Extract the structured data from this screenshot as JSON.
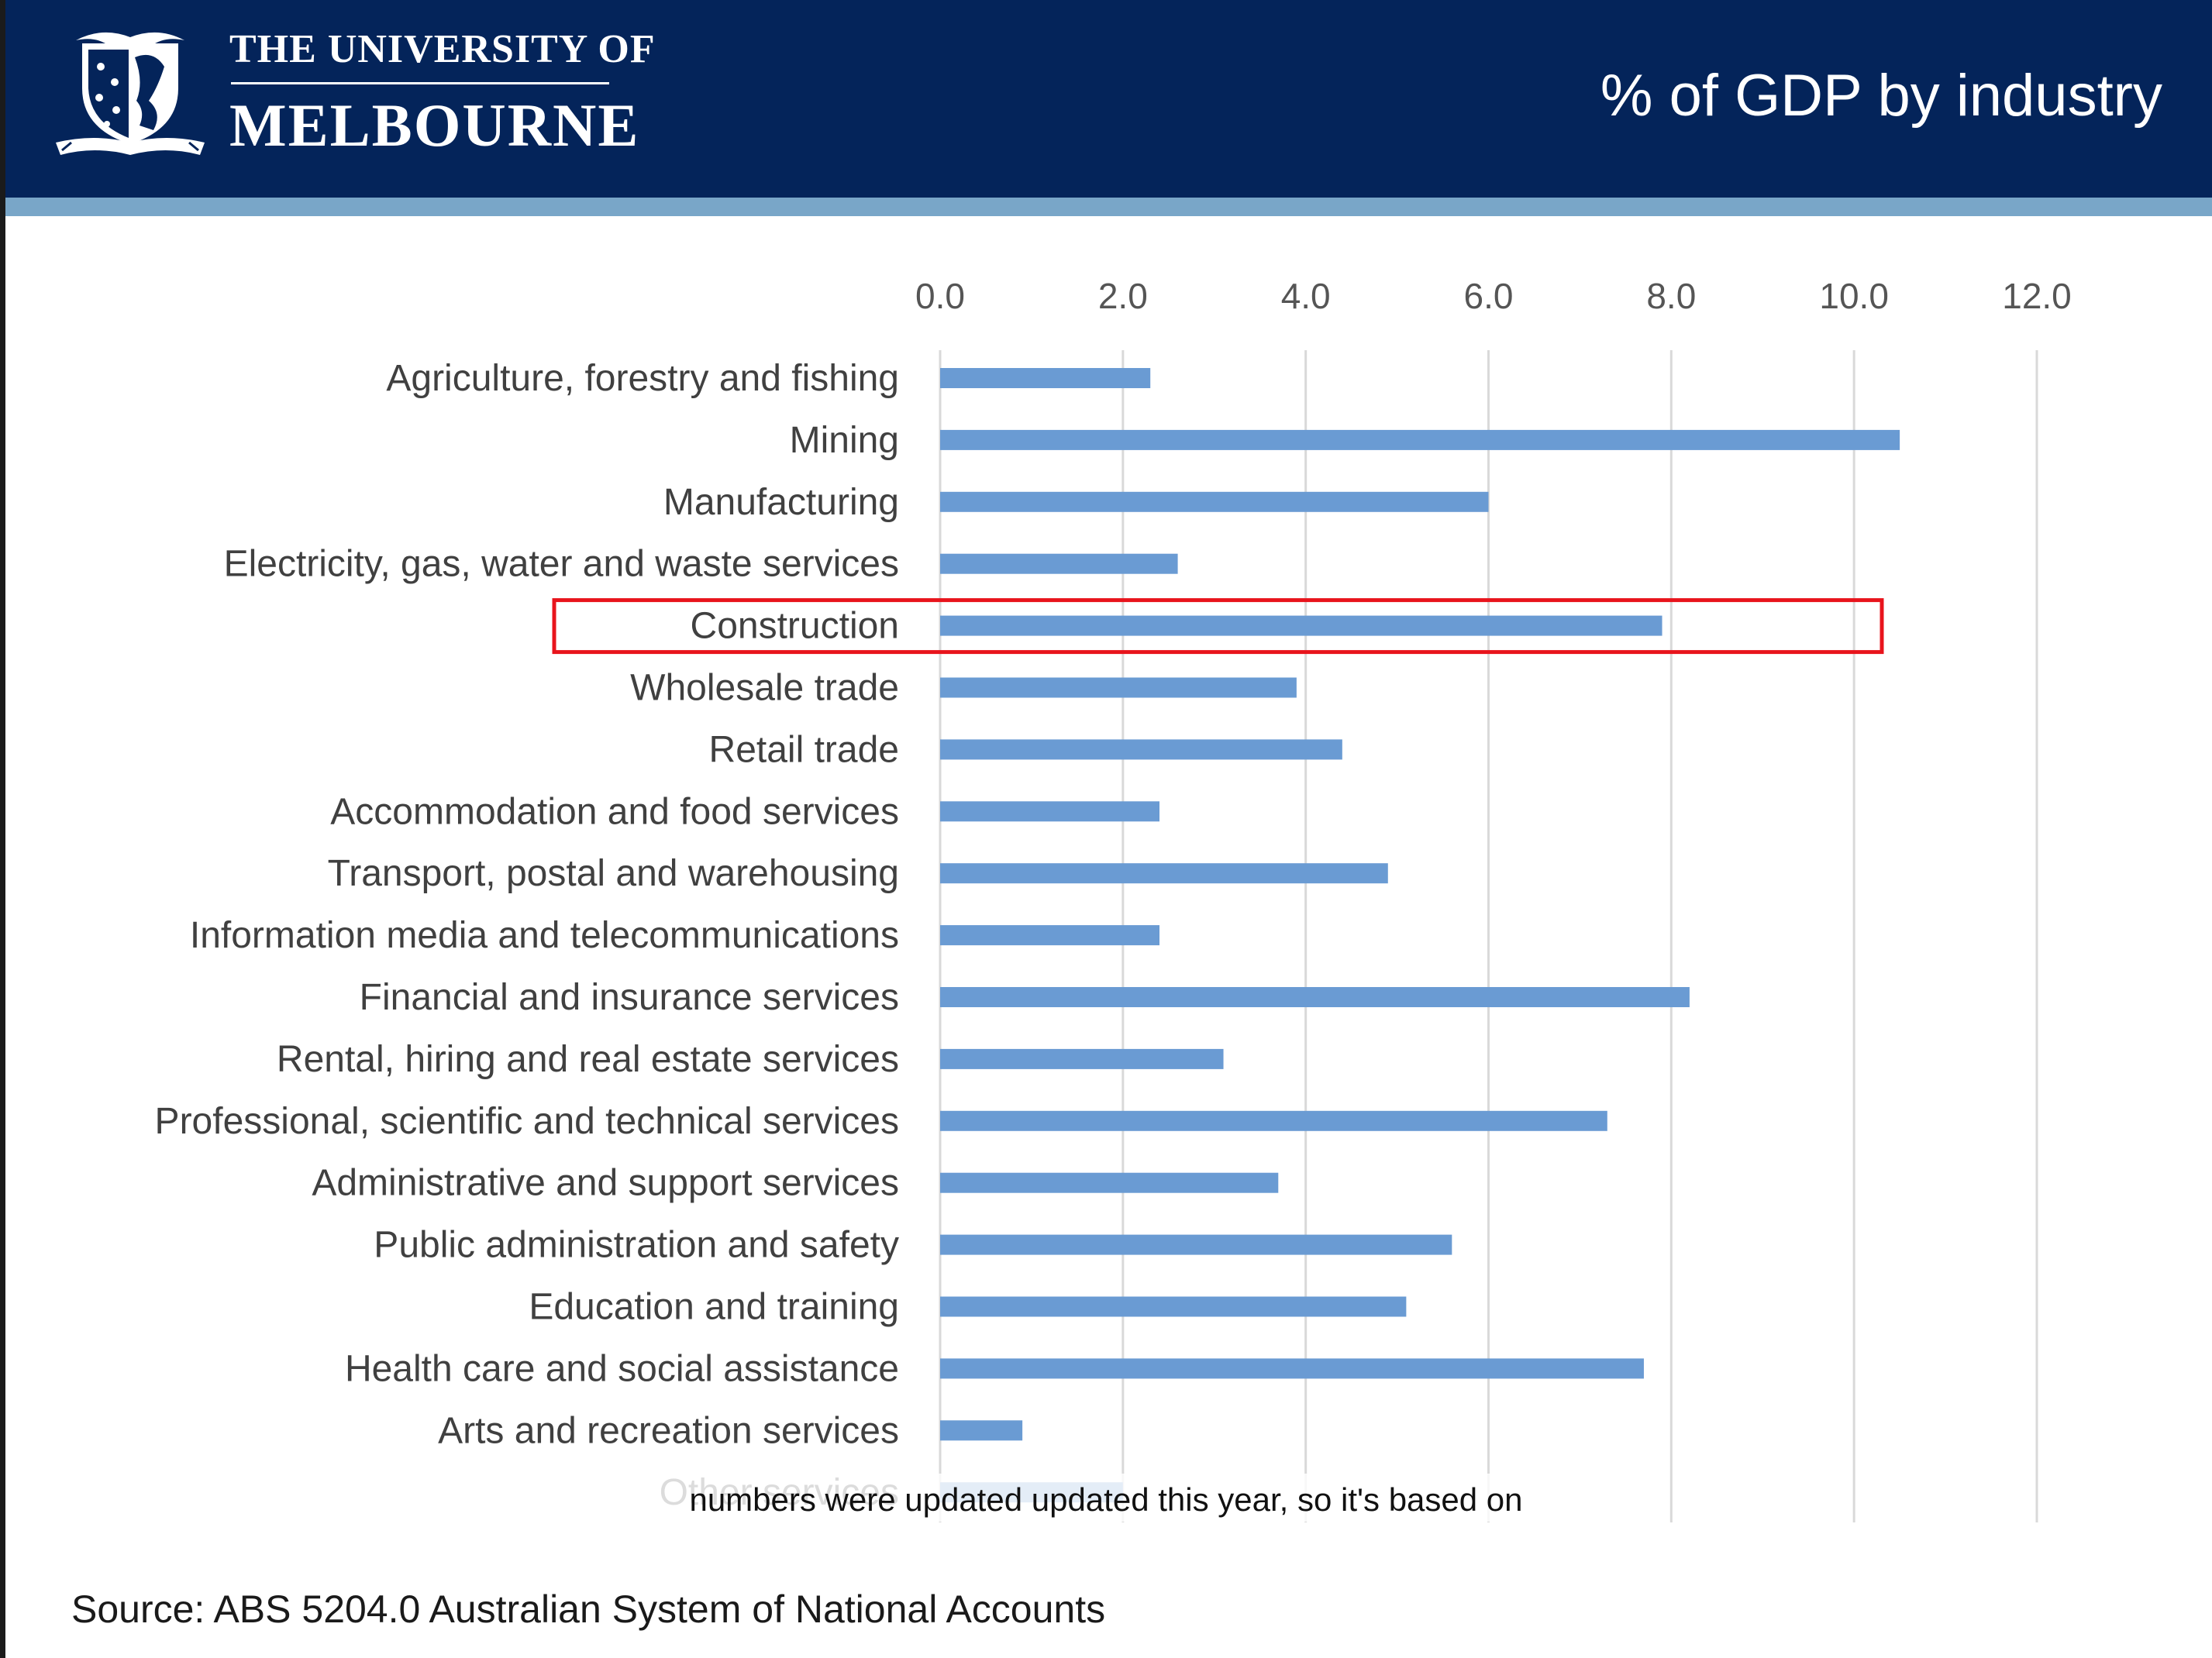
{
  "header": {
    "university_line1": "THE UNIVERSITY OF",
    "university_line2": "MELBOURNE",
    "slide_title": "% of GDP by industry",
    "logo_icon": "university-crest-icon"
  },
  "caption": "numbers were updated updated this year, so it's based on",
  "source": "Source: ABS 5204.0 Australian System of National Accounts",
  "colors": {
    "header_bg": "#04245a",
    "stripe": "#79a6c8",
    "bar": "#6a9bd3",
    "highlight": "#e8141c",
    "grid": "#d9d9d9"
  },
  "chart_data": {
    "type": "bar",
    "orientation": "horizontal",
    "title": "",
    "xlabel": "",
    "ylabel": "",
    "xlim": [
      0,
      12
    ],
    "ticks": [
      "0.0",
      "2.0",
      "4.0",
      "6.0",
      "8.0",
      "10.0",
      "12.0"
    ],
    "tick_position": "top",
    "grid": true,
    "categories": [
      "Agriculture, forestry and fishing",
      "Mining",
      "Manufacturing",
      "Electricity, gas, water and waste services",
      "Construction",
      "Wholesale trade",
      "Retail trade",
      "Accommodation and food services",
      "Transport, postal and warehousing",
      "Information media and telecommunications",
      "Financial and insurance services",
      "Rental, hiring and real estate services",
      "Professional, scientific and technical services",
      "Administrative and support services",
      "Public administration and safety",
      "Education and training",
      "Health care and social assistance",
      "Arts and recreation services",
      "Other services"
    ],
    "values": [
      2.3,
      10.5,
      6.0,
      2.6,
      7.9,
      3.9,
      4.4,
      2.4,
      4.9,
      2.4,
      8.2,
      3.1,
      7.3,
      3.7,
      5.6,
      5.1,
      7.7,
      0.9,
      2.0
    ],
    "highlighted_category": "Construction"
  }
}
